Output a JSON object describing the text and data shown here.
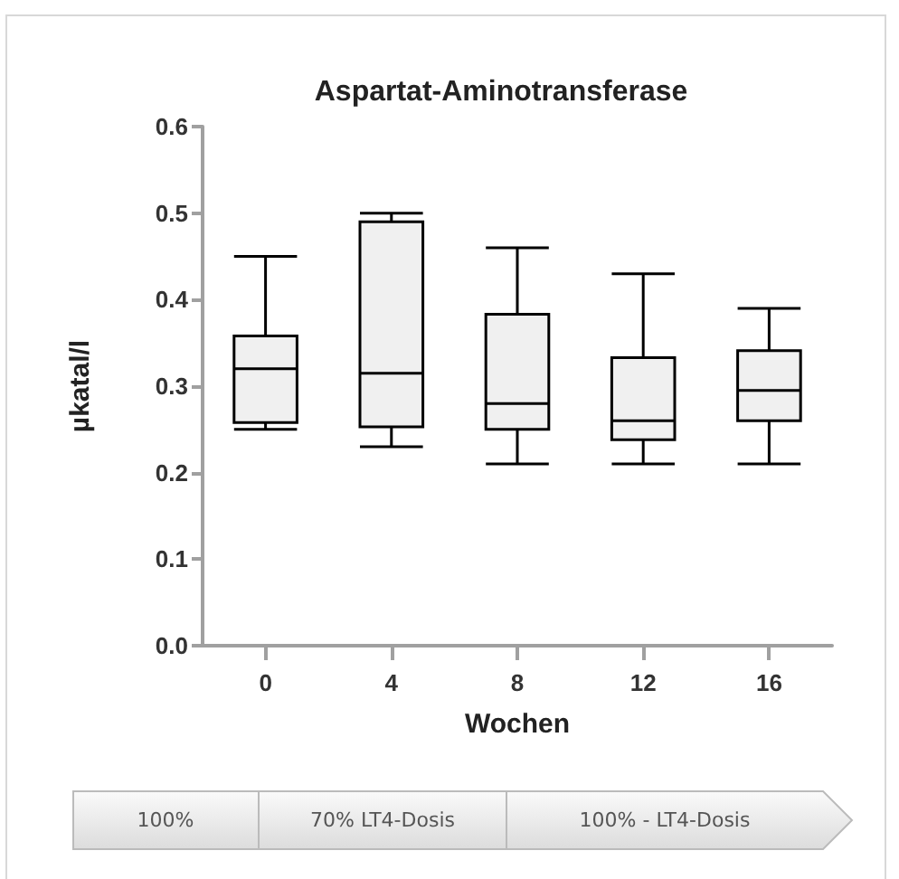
{
  "chart_data": {
    "type": "box",
    "title": "Aspartat-Aminotransferase",
    "xlabel": "Wochen",
    "ylabel": "µkatal/l",
    "categories": [
      "0",
      "4",
      "8",
      "12",
      "16"
    ],
    "boxes": [
      {
        "low": 0.25,
        "q1": 0.258,
        "median": 0.32,
        "q3": 0.358,
        "high": 0.45
      },
      {
        "low": 0.23,
        "q1": 0.253,
        "median": 0.315,
        "q3": 0.49,
        "high": 0.5
      },
      {
        "low": 0.21,
        "q1": 0.25,
        "median": 0.28,
        "q3": 0.383,
        "high": 0.46
      },
      {
        "low": 0.21,
        "q1": 0.238,
        "median": 0.26,
        "q3": 0.333,
        "high": 0.43
      },
      {
        "low": 0.21,
        "q1": 0.26,
        "median": 0.295,
        "q3": 0.341,
        "high": 0.39
      }
    ],
    "color": "#f0f0f0",
    "ylim": [
      0,
      0.6
    ],
    "yticks": [
      {
        "value": 0,
        "label": "0.0"
      },
      0.1,
      0.2,
      0.3,
      0.4,
      0.5,
      0.6
    ],
    "grid": false,
    "annotations": [
      "100%",
      "70% LT4-Dosis",
      "100% - LT4-Dosis"
    ]
  }
}
